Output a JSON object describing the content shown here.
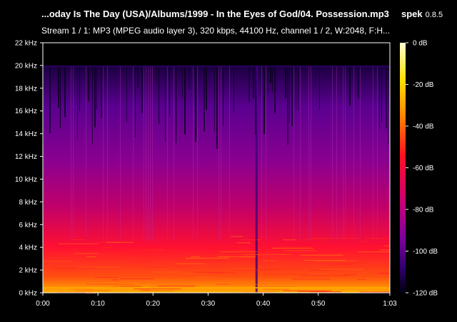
{
  "window": {
    "title": "...oday Is The Day (USA)/Albums/1999 - In the Eyes of God/04. Possession.mp3",
    "app_name": "spek",
    "app_version": "0.8.5",
    "stream_info": "Stream 1 / 1: MP3 (MPEG audio layer 3), 320 kbps, 44100 Hz, channel 1 / 2, W:2048, F:H..."
  },
  "colors": {
    "background": "#000000",
    "text": "#ffffff",
    "palette": [
      "#000000",
      "#1a0040",
      "#4a0080",
      "#8a00a0",
      "#c4007a",
      "#ff0030",
      "#ff6a00",
      "#ffd200",
      "#ffffc8"
    ]
  },
  "chart_data": {
    "type": "heatmap",
    "freq_axis": {
      "ticks": [
        "22 kHz",
        "20 kHz",
        "18 kHz",
        "16 kHz",
        "14 kHz",
        "12 kHz",
        "10 kHz",
        "8 kHz",
        "6 kHz",
        "4 kHz",
        "2 kHz",
        "0 kHz"
      ],
      "values_khz": [
        22,
        20,
        18,
        16,
        14,
        12,
        10,
        8,
        6,
        4,
        2,
        0
      ],
      "range_khz": [
        0,
        22
      ]
    },
    "time_axis": {
      "ticks": [
        "0:00",
        "0:10",
        "0:20",
        "0:30",
        "0:40",
        "0:50",
        "1:03"
      ],
      "values_s": [
        0,
        10,
        20,
        30,
        40,
        50,
        63
      ],
      "range_s": [
        0,
        63
      ]
    },
    "db_scale": {
      "ticks": [
        "0 dB",
        "-20 dB",
        "-40 dB",
        "-60 dB",
        "-80 dB",
        "-100 dB",
        "-120 dB"
      ],
      "values_db": [
        0,
        -20,
        -40,
        -60,
        -80,
        -100,
        -120
      ],
      "range_db": [
        -120,
        0
      ]
    },
    "content_cutoff_khz": 20
  }
}
